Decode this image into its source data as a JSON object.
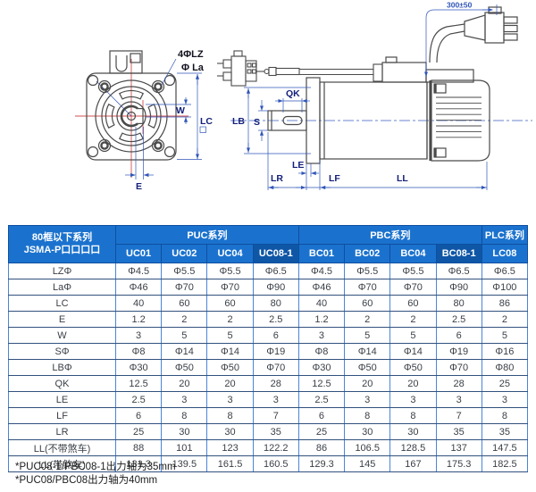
{
  "drawing": {
    "front_labels": {
      "bolt_holes": "4ΦLZ",
      "la": "Φ La",
      "w": "W",
      "lc": "LC",
      "e": "E"
    },
    "side_labels": {
      "qk": "QK",
      "lb": "LB",
      "s": "S",
      "le": "LE",
      "lr": "LR",
      "lf": "LF",
      "ll": "LL",
      "cable_length": "300±50"
    },
    "colors": {
      "outline": "#4a4a4a",
      "centerline_red": "#d05050",
      "dimension_blue": "#2f55b8"
    }
  },
  "table": {
    "corner_header": {
      "line1": "80框以下系列",
      "line2": "JSMA-P口口口口"
    },
    "groups": [
      {
        "label": "PUC系列",
        "span": 4
      },
      {
        "label": "PBC系列",
        "span": 4
      },
      {
        "label": "PLC系列",
        "span": 1
      }
    ],
    "columns": [
      "UC01",
      "UC02",
      "UC04",
      "UC08-1",
      "BC01",
      "BC02",
      "BC04",
      "BC08-1",
      "LC08"
    ],
    "dark_column_indexes": [
      3,
      7
    ],
    "rows": [
      {
        "label": "LZΦ",
        "values": [
          "Φ4.5",
          "Φ5.5",
          "Φ5.5",
          "Φ6.5",
          "Φ4.5",
          "Φ5.5",
          "Φ5.5",
          "Φ6.5",
          "Φ6.5"
        ]
      },
      {
        "label": "LaΦ",
        "values": [
          "Φ46",
          "Φ70",
          "Φ70",
          "Φ90",
          "Φ46",
          "Φ70",
          "Φ70",
          "Φ90",
          "Φ100"
        ]
      },
      {
        "label": "LC",
        "values": [
          "40",
          "60",
          "60",
          "80",
          "40",
          "60",
          "60",
          "80",
          "86"
        ]
      },
      {
        "label": "E",
        "values": [
          "1.2",
          "2",
          "2",
          "2.5",
          "1.2",
          "2",
          "2",
          "2.5",
          "2"
        ]
      },
      {
        "label": "W",
        "values": [
          "3",
          "5",
          "5",
          "6",
          "3",
          "5",
          "5",
          "6",
          "5"
        ]
      },
      {
        "label": "SΦ",
        "values": [
          "Φ8",
          "Φ14",
          "Φ14",
          "Φ19",
          "Φ8",
          "Φ14",
          "Φ14",
          "Φ19",
          "Φ16"
        ]
      },
      {
        "label": "LBΦ",
        "values": [
          "Φ30",
          "Φ50",
          "Φ50",
          "Φ70",
          "Φ30",
          "Φ50",
          "Φ50",
          "Φ70",
          "Φ80"
        ]
      },
      {
        "label": "QK",
        "values": [
          "12.5",
          "20",
          "20",
          "28",
          "12.5",
          "20",
          "20",
          "28",
          "25"
        ]
      },
      {
        "label": "LE",
        "values": [
          "2.5",
          "3",
          "3",
          "3",
          "2.5",
          "3",
          "3",
          "3",
          "3"
        ]
      },
      {
        "label": "LF",
        "values": [
          "6",
          "8",
          "8",
          "7",
          "6",
          "8",
          "8",
          "7",
          "8"
        ]
      },
      {
        "label": "LR",
        "values": [
          "25",
          "30",
          "30",
          "35",
          "25",
          "30",
          "30",
          "35",
          "35"
        ]
      },
      {
        "label": "LL(不带煞车)",
        "values": [
          "88",
          "101",
          "123",
          "122.2",
          "86",
          "106.5",
          "128.5",
          "137",
          "147.5"
        ]
      },
      {
        "label": "LL(带煞车)",
        "values": [
          "131.3",
          "139.5",
          "161.5",
          "160.5",
          "129.3",
          "145",
          "167",
          "175.3",
          "182.5"
        ]
      }
    ],
    "colors": {
      "header_bg": "#1b72ce",
      "header_dark_bg": "#0f57a6",
      "header_text": "#ffffff",
      "grid_vertical": "#4a86d8",
      "grid_horizontal": "#31517e",
      "cell_text": "#3a3f46"
    }
  },
  "footnotes": [
    "*PUC08-1/PBC08-1出力轴为35mm",
    "*PUC08/PBC08出力轴为40mm"
  ]
}
